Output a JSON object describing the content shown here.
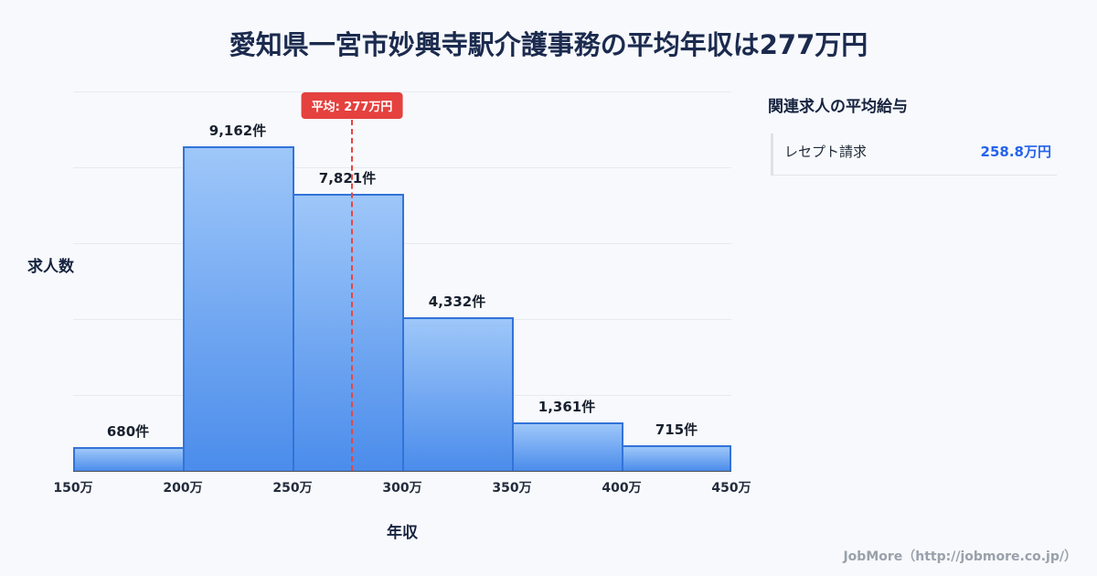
{
  "page": {
    "title": "愛知県一宮市妙興寺駅介護事務の平均年収は277万円",
    "footer": "JobMore（http://jobmore.co.jp/）"
  },
  "chart_data": {
    "type": "bar",
    "title": "愛知県一宮市妙興寺駅介護事務の平均年収は277万円",
    "xlabel": "年収",
    "ylabel": "求人数",
    "categories": [
      "150万",
      "200万",
      "250万",
      "300万",
      "350万",
      "400万",
      "450万"
    ],
    "values": [
      680,
      9162,
      7821,
      4332,
      1361,
      715
    ],
    "unit": "件",
    "x_range": [
      150,
      450
    ],
    "ylim": [
      0,
      10000
    ],
    "grid": "horizontal",
    "legend": "none",
    "average_line": {
      "value": 277,
      "label": "平均: 277万円",
      "color": "#e5413e"
    },
    "bar_color_top": "#9ec7f9",
    "bar_color_bottom": "#4b8ceb",
    "bar_border_color": "#3273d8"
  },
  "sidebar": {
    "heading": "関連求人の平均給与",
    "items": [
      {
        "label": "レセプト請求",
        "value": "258.8万円"
      }
    ],
    "value_color": "#2563eb"
  }
}
